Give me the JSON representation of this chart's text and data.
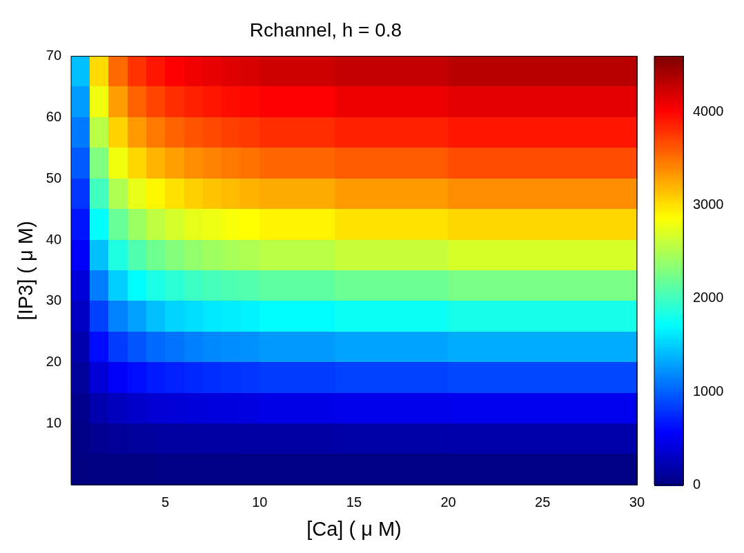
{
  "chart_data": {
    "type": "heatmap",
    "title": "Rchannel, h = 0.8",
    "xlabel": "[Ca] ( μ M)",
    "ylabel": "[IP3] ( μ M)",
    "x": [
      0.5,
      1.5,
      2.5,
      3.5,
      4.5,
      5.5,
      6.5,
      7.5,
      8.5,
      9.5,
      10.5,
      11.5,
      12.5,
      13.5,
      14.5,
      15.5,
      16.5,
      17.5,
      18.5,
      19.5,
      20.5,
      21.5,
      22.5,
      23.5,
      24.5,
      25.5,
      26.5,
      27.5,
      28.5,
      29.5
    ],
    "y": [
      67.5,
      62.5,
      57.5,
      52.5,
      47.5,
      42.5,
      37.5,
      32.5,
      27.5,
      22.5,
      17.5,
      12.5,
      7.5,
      2.5
    ],
    "xlim": [
      0,
      30
    ],
    "xticks": [
      5,
      10,
      15,
      20,
      25,
      30
    ],
    "ylim": [
      0,
      70
    ],
    "yticks": [
      10,
      20,
      30,
      40,
      50,
      60,
      70
    ],
    "clim": [
      0,
      4600
    ],
    "cticks": [
      0,
      1000,
      2000,
      3000,
      4000
    ],
    "cells": [
      [
        1440,
        3040,
        3550,
        3800,
        3930,
        4030,
        4090,
        4130,
        4170,
        4200,
        4240,
        4240,
        4240,
        4240,
        4290,
        4290,
        4290,
        4290,
        4290,
        4290,
        4340,
        4340,
        4340,
        4340,
        4340,
        4340,
        4340,
        4340,
        4340,
        4340
      ],
      [
        1280,
        2810,
        3320,
        3580,
        3720,
        3820,
        3880,
        3930,
        3970,
        4000,
        4040,
        4040,
        4040,
        4040,
        4100,
        4100,
        4100,
        4100,
        4100,
        4100,
        4150,
        4150,
        4150,
        4150,
        4150,
        4150,
        4150,
        4150,
        4150,
        4150
      ],
      [
        1130,
        2560,
        3080,
        3330,
        3480,
        3580,
        3650,
        3700,
        3740,
        3770,
        3820,
        3820,
        3820,
        3820,
        3880,
        3880,
        3880,
        3880,
        3880,
        3880,
        3930,
        3930,
        3930,
        3930,
        3930,
        3930,
        3930,
        3930,
        3930,
        3930
      ],
      [
        970,
        2300,
        2810,
        3060,
        3210,
        3310,
        3390,
        3440,
        3480,
        3510,
        3560,
        3560,
        3560,
        3560,
        3620,
        3620,
        3620,
        3620,
        3620,
        3620,
        3680,
        3680,
        3680,
        3680,
        3680,
        3680,
        3680,
        3680,
        3680,
        3680
      ],
      [
        810,
        2020,
        2510,
        2770,
        2910,
        3010,
        3090,
        3140,
        3180,
        3220,
        3260,
        3260,
        3260,
        3260,
        3330,
        3330,
        3330,
        3330,
        3330,
        3330,
        3390,
        3390,
        3390,
        3390,
        3390,
        3390,
        3390,
        3390,
        3390,
        3390
      ],
      [
        670,
        1730,
        2190,
        2430,
        2580,
        2680,
        2760,
        2800,
        2850,
        2880,
        2930,
        2930,
        2930,
        2930,
        3000,
        3000,
        3000,
        3000,
        3000,
        3000,
        3060,
        3060,
        3060,
        3060,
        3060,
        3060,
        3060,
        3060,
        3060,
        3060
      ],
      [
        540,
        1440,
        1860,
        2080,
        2220,
        2320,
        2390,
        2440,
        2480,
        2510,
        2560,
        2560,
        2560,
        2560,
        2620,
        2620,
        2620,
        2620,
        2620,
        2620,
        2690,
        2690,
        2690,
        2690,
        2690,
        2690,
        2690,
        2690,
        2690,
        2690
      ],
      [
        410,
        1140,
        1510,
        1710,
        1840,
        1920,
        1990,
        2040,
        2070,
        2100,
        2150,
        2150,
        2150,
        2150,
        2210,
        2210,
        2210,
        2210,
        2210,
        2210,
        2270,
        2270,
        2270,
        2270,
        2270,
        2270,
        2270,
        2270,
        2270,
        2270
      ],
      [
        300,
        870,
        1160,
        1300,
        1440,
        1530,
        1570,
        1620,
        1650,
        1670,
        1710,
        1710,
        1710,
        1710,
        1770,
        1770,
        1770,
        1770,
        1770,
        1770,
        1820,
        1820,
        1820,
        1820,
        1820,
        1820,
        1820,
        1820,
        1820,
        1820
      ],
      [
        200,
        620,
        840,
        960,
        1050,
        1100,
        1150,
        1190,
        1210,
        1230,
        1270,
        1270,
        1270,
        1270,
        1310,
        1310,
        1310,
        1310,
        1310,
        1310,
        1350,
        1350,
        1350,
        1350,
        1350,
        1350,
        1350,
        1350,
        1350,
        1350
      ],
      [
        120,
        390,
        540,
        630,
        690,
        720,
        750,
        780,
        800,
        810,
        840,
        840,
        840,
        840,
        870,
        870,
        870,
        870,
        870,
        870,
        900,
        900,
        900,
        900,
        900,
        900,
        900,
        900,
        900,
        900
      ],
      [
        60,
        200,
        280,
        340,
        370,
        390,
        410,
        420,
        430,
        440,
        460,
        460,
        460,
        460,
        480,
        480,
        480,
        480,
        480,
        480,
        500,
        500,
        500,
        500,
        500,
        500,
        500,
        500,
        500,
        500
      ],
      [
        20,
        80,
        110,
        130,
        140,
        150,
        150,
        160,
        160,
        170,
        170,
        170,
        170,
        170,
        180,
        180,
        180,
        180,
        180,
        180,
        190,
        190,
        190,
        190,
        190,
        190,
        190,
        190,
        190,
        190
      ],
      [
        0,
        10,
        10,
        10,
        20,
        20,
        20,
        20,
        20,
        20,
        20,
        20,
        20,
        20,
        20,
        20,
        20,
        20,
        20,
        20,
        20,
        20,
        20,
        20,
        20,
        20,
        20,
        20,
        20,
        20
      ]
    ]
  }
}
